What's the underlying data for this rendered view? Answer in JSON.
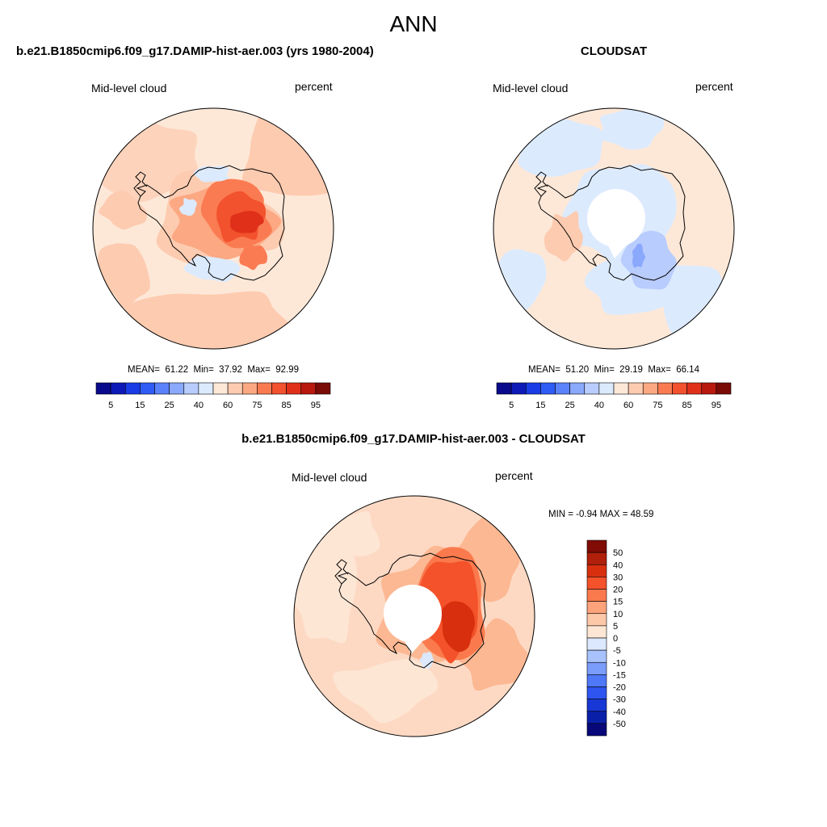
{
  "figure": {
    "season": "ANN"
  },
  "panels": [
    {
      "title": "b.e21.B1850cmip6.f09_g17.DAMIP-hist-aer.003 (yrs 1980-2004)",
      "variable": "Mid-level cloud",
      "units": "percent",
      "stats": {
        "mean_label": "MEAN=",
        "mean": "61.22",
        "min_label": "Min=",
        "min": "37.92",
        "max_label": "Max=",
        "max": "92.99"
      },
      "colorbar_ticks": [
        "5",
        "15",
        "25",
        "40",
        "60",
        "75",
        "85",
        "95"
      ]
    },
    {
      "title": "CLOUDSAT",
      "variable": "Mid-level cloud",
      "units": "percent",
      "stats": {
        "mean_label": "MEAN=",
        "mean": "51.20",
        "min_label": "Min=",
        "min": "29.19",
        "max_label": "Max=",
        "max": "66.14"
      },
      "colorbar_ticks": [
        "5",
        "15",
        "25",
        "40",
        "60",
        "75",
        "85",
        "95"
      ]
    },
    {
      "title": "b.e21.B1850cmip6.f09_g17.DAMIP-hist-aer.003 - CLOUDSAT",
      "variable": "Mid-level cloud",
      "units": "percent",
      "stats_text": "MIN =  -0.94 MAX =  48.59",
      "colorbar_ticks": [
        "50",
        "40",
        "30",
        "20",
        "15",
        "10",
        "5",
        "0",
        "-5",
        "-10",
        "-15",
        "-20",
        "-30",
        "-40",
        "-50"
      ]
    }
  ],
  "chart_data": [
    {
      "type": "heatmap",
      "projection": "south polar stereographic",
      "title": "b.e21.B1850cmip6.f09_g17.DAMIP-hist-aer.003 (yrs 1980-2004)",
      "field": "Mid-level cloud",
      "units": "percent",
      "mean": 61.22,
      "min": 37.92,
      "max": 92.99,
      "levels": [
        5,
        10,
        15,
        20,
        25,
        30,
        40,
        50,
        60,
        70,
        75,
        80,
        85,
        90,
        95
      ],
      "colors": [
        "#0a0a8c",
        "#0d1ab8",
        "#1a3ce6",
        "#2e5cf5",
        "#5a82fa",
        "#8aa8fc",
        "#b8ccfd",
        "#dceafe",
        "#fde8d8",
        "#fdcbb0",
        "#fca882",
        "#fa7b52",
        "#f2522d",
        "#e0301a",
        "#b8180e",
        "#7a0a06"
      ]
    },
    {
      "type": "heatmap",
      "projection": "south polar stereographic",
      "title": "CLOUDSAT",
      "field": "Mid-level cloud",
      "units": "percent",
      "mean": 51.2,
      "min": 29.19,
      "max": 66.14,
      "levels": [
        5,
        10,
        15,
        20,
        25,
        30,
        40,
        50,
        60,
        70,
        75,
        80,
        85,
        90,
        95
      ],
      "colors": [
        "#0a0a8c",
        "#0d1ab8",
        "#1a3ce6",
        "#2e5cf5",
        "#5a82fa",
        "#8aa8fc",
        "#b8ccfd",
        "#dceafe",
        "#fde8d8",
        "#fdcbb0",
        "#fca882",
        "#fa7b52",
        "#f2522d",
        "#e0301a",
        "#b8180e",
        "#7a0a06"
      ]
    },
    {
      "type": "heatmap",
      "projection": "south polar stereographic",
      "title": "b.e21.B1850cmip6.f09_g17.DAMIP-hist-aer.003 - CLOUDSAT",
      "field": "Mid-level cloud",
      "units": "percent",
      "min": -0.94,
      "max": 48.59,
      "levels": [
        -50,
        -40,
        -30,
        -20,
        -15,
        -10,
        -5,
        0,
        5,
        10,
        15,
        20,
        30,
        40,
        50
      ],
      "colors": [
        "#08087a",
        "#0a1fa8",
        "#1838d6",
        "#2e55f0",
        "#4f78f8",
        "#7a9cfb",
        "#a8c2fd",
        "#dbe8fe",
        "#fde6d4",
        "#fdc8a8",
        "#fca37c",
        "#fa7a4e",
        "#f4522a",
        "#d8300f",
        "#b0200a",
        "#800c05"
      ]
    }
  ]
}
